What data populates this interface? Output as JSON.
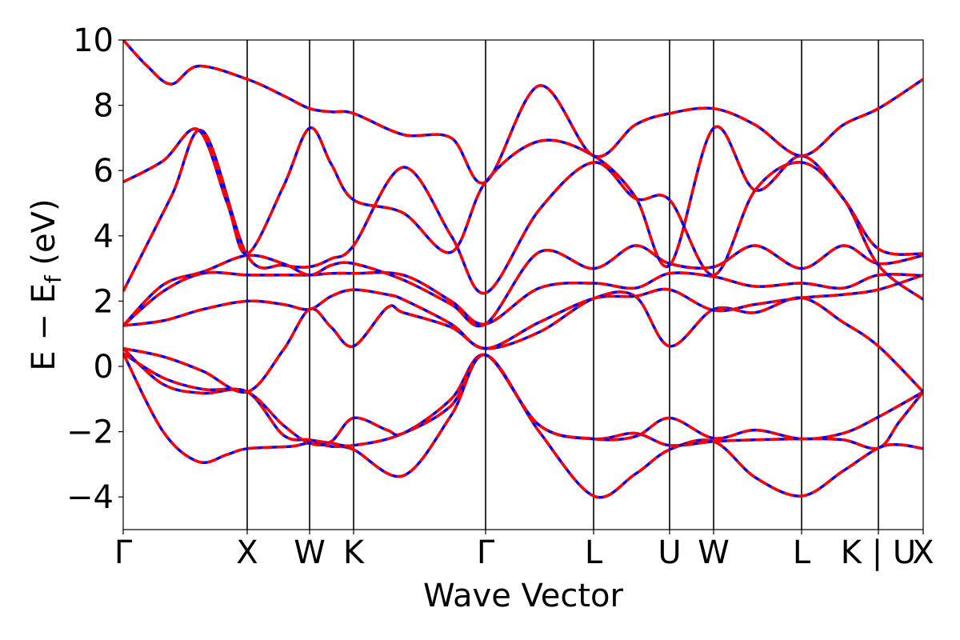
{
  "chart_data": {
    "type": "line",
    "title": "",
    "xlabel": "Wave Vector",
    "ylabel_parts": {
      "main": "E − E",
      "sub": "f",
      "unit": " (eV)"
    },
    "ylim": [
      -5,
      10
    ],
    "xlim": [
      0,
      1
    ],
    "yticks": [
      -4,
      -2,
      0,
      2,
      4,
      6,
      8,
      10
    ],
    "ytick_labels": [
      "−4",
      "−2",
      "0",
      "2",
      "4",
      "6",
      "8",
      "10"
    ],
    "kpoints": [
      {
        "label": "Γ",
        "x": 0.0
      },
      {
        "label": "X",
        "x": 0.155
      },
      {
        "label": "W",
        "x": 0.233
      },
      {
        "label": "K",
        "x": 0.288
      },
      {
        "label": "Γ",
        "x": 0.453
      },
      {
        "label": "L",
        "x": 0.588
      },
      {
        "label": "U",
        "x": 0.683
      },
      {
        "label": "W",
        "x": 0.738
      },
      {
        "label": "L",
        "x": 0.848
      },
      {
        "label": "K | U",
        "x": 0.944
      },
      {
        "label": "X",
        "x": 1.0
      }
    ],
    "grid": false,
    "legend": "none",
    "overlay_colors": {
      "reference": "#0000ff",
      "fit": "#ff0000"
    },
    "series": [
      {
        "x": [
          0.0,
          0.05,
          0.094,
          0.13,
          0.155,
          0.21,
          0.233,
          0.26,
          0.288,
          0.35,
          0.41,
          0.453,
          0.52,
          0.588,
          0.64,
          0.683,
          0.738,
          0.79,
          0.848,
          0.9,
          0.944,
          0.97,
          1.0
        ],
        "y": [
          0.4,
          -2.0,
          -2.92,
          -2.7,
          -2.52,
          -2.45,
          -2.35,
          -2.45,
          -2.55,
          -3.35,
          -1.5,
          0.35,
          -2.0,
          -3.97,
          -3.3,
          -2.55,
          -2.3,
          -3.4,
          -3.97,
          -3.2,
          -2.5,
          -2.4,
          -2.52
        ]
      },
      {
        "x": [
          0.0,
          0.05,
          0.1,
          0.155,
          0.2,
          0.233,
          0.26,
          0.288,
          0.35,
          0.41,
          0.453,
          0.52,
          0.588,
          0.64,
          0.683,
          0.738,
          0.79,
          0.848,
          0.9,
          0.944,
          0.97,
          1.0
        ],
        "y": [
          0.55,
          -0.55,
          -0.82,
          -0.78,
          -2.1,
          -2.25,
          -2.35,
          -2.42,
          -2.05,
          -1.0,
          0.35,
          -1.8,
          -2.22,
          -2.05,
          -2.42,
          -2.3,
          -2.25,
          -2.22,
          -2.25,
          -2.5,
          -1.7,
          -0.78
        ]
      },
      {
        "x": [
          0.0,
          0.05,
          0.1,
          0.155,
          0.2,
          0.233,
          0.26,
          0.288,
          0.33,
          0.35,
          0.41,
          0.453,
          0.52,
          0.588,
          0.64,
          0.683,
          0.738,
          0.79,
          0.848,
          0.9,
          0.944,
          1.0
        ],
        "y": [
          0.4,
          -0.35,
          -0.7,
          -0.78,
          -1.8,
          -2.35,
          -2.3,
          -1.58,
          -1.95,
          -2.05,
          -1.2,
          0.35,
          -1.8,
          -2.22,
          -2.15,
          -1.58,
          -2.2,
          -1.95,
          -2.22,
          -2.05,
          -1.55,
          -0.78
        ]
      },
      {
        "x": [
          0.0,
          0.05,
          0.1,
          0.155,
          0.2,
          0.233,
          0.26,
          0.288,
          0.33,
          0.35,
          0.41,
          0.453,
          0.52,
          0.588,
          0.64,
          0.683,
          0.738,
          0.79,
          0.848,
          0.9,
          0.944,
          1.0
        ],
        "y": [
          0.55,
          0.3,
          -0.15,
          -0.78,
          0.5,
          1.75,
          1.2,
          0.62,
          1.8,
          1.65,
          1.2,
          0.55,
          1.05,
          2.08,
          2.15,
          0.62,
          1.75,
          1.65,
          2.1,
          1.35,
          0.62,
          -0.78
        ]
      },
      {
        "x": [
          0.0,
          0.05,
          0.1,
          0.155,
          0.2,
          0.233,
          0.26,
          0.288,
          0.33,
          0.35,
          0.41,
          0.453,
          0.52,
          0.588,
          0.64,
          0.683,
          0.738,
          0.79,
          0.848,
          0.9,
          0.944,
          1.0
        ],
        "y": [
          1.25,
          1.4,
          1.75,
          2.0,
          1.9,
          1.75,
          2.15,
          2.35,
          2.2,
          2.05,
          1.3,
          0.55,
          1.35,
          2.08,
          2.15,
          2.35,
          1.72,
          1.9,
          2.1,
          2.2,
          2.35,
          2.8
        ]
      },
      {
        "x": [
          0.0,
          0.05,
          0.1,
          0.155,
          0.2,
          0.233,
          0.26,
          0.288,
          0.35,
          0.41,
          0.453,
          0.52,
          0.588,
          0.64,
          0.683,
          0.738,
          0.79,
          0.848,
          0.9,
          0.944,
          1.0
        ],
        "y": [
          1.25,
          2.3,
          2.85,
          2.8,
          2.8,
          2.8,
          2.85,
          2.85,
          2.8,
          2.0,
          1.3,
          2.4,
          2.55,
          2.4,
          2.85,
          2.75,
          2.45,
          2.55,
          2.4,
          2.8,
          2.78
        ]
      },
      {
        "x": [
          0.0,
          0.05,
          0.1,
          0.155,
          0.2,
          0.233,
          0.26,
          0.288,
          0.35,
          0.41,
          0.453,
          0.52,
          0.588,
          0.64,
          0.683,
          0.738,
          0.79,
          0.848,
          0.9,
          0.944,
          1.0
        ],
        "y": [
          1.25,
          2.5,
          2.9,
          3.4,
          3.15,
          2.8,
          3.1,
          3.15,
          2.65,
          1.9,
          1.3,
          3.5,
          3.0,
          3.7,
          3.15,
          3.05,
          3.7,
          3.0,
          3.7,
          3.15,
          3.4
        ]
      },
      {
        "x": [
          0.0,
          0.06,
          0.1,
          0.155,
          0.2,
          0.233,
          0.26,
          0.288,
          0.35,
          0.41,
          0.453,
          0.52,
          0.588,
          0.64,
          0.683,
          0.738,
          0.79,
          0.848,
          0.9,
          0.944,
          1.0
        ],
        "y": [
          2.3,
          5.2,
          7.2,
          3.4,
          3.1,
          3.05,
          3.3,
          3.7,
          6.1,
          4.0,
          2.25,
          4.8,
          6.25,
          5.15,
          5.1,
          2.8,
          5.4,
          6.25,
          5.15,
          3.1,
          2.05
        ]
      },
      {
        "x": [
          0.0,
          0.05,
          0.094,
          0.13,
          0.155,
          0.2,
          0.233,
          0.26,
          0.288,
          0.35,
          0.41,
          0.453,
          0.52,
          0.588,
          0.64,
          0.683,
          0.738,
          0.79,
          0.848,
          0.9,
          0.944,
          1.0
        ],
        "y": [
          5.65,
          6.3,
          7.25,
          5.0,
          3.45,
          5.5,
          7.3,
          6.2,
          5.1,
          4.7,
          3.5,
          5.65,
          6.9,
          6.45,
          5.2,
          3.1,
          7.3,
          5.4,
          6.45,
          5.15,
          3.6,
          3.45
        ]
      },
      {
        "x": [
          0.0,
          0.03,
          0.06,
          0.094,
          0.155,
          0.2,
          0.233,
          0.26,
          0.288,
          0.35,
          0.41,
          0.453,
          0.52,
          0.588,
          0.64,
          0.683,
          0.738,
          0.79,
          0.848,
          0.9,
          0.944,
          1.0
        ],
        "y": [
          10.0,
          9.2,
          8.65,
          9.2,
          8.8,
          8.3,
          7.9,
          7.8,
          7.75,
          7.1,
          7.0,
          5.65,
          8.6,
          6.45,
          7.4,
          7.75,
          7.9,
          7.4,
          6.45,
          7.4,
          7.9,
          8.8
        ]
      }
    ]
  }
}
